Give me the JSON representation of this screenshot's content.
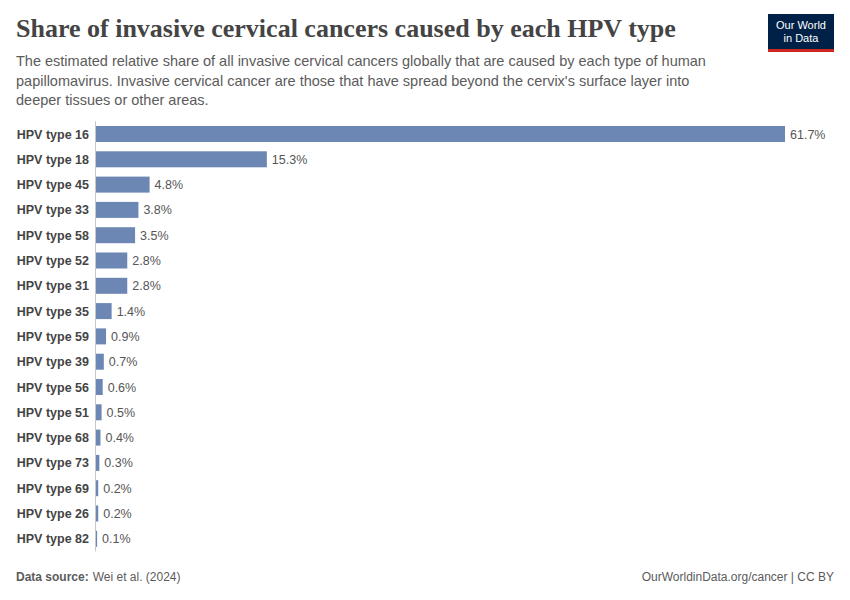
{
  "chart_data": {
    "type": "bar",
    "orientation": "horizontal",
    "title": "Share of invasive cervical cancers caused by each HPV type",
    "subtitle": "The estimated relative share of all invasive cervical cancers globally that are caused by each type of human papillomavirus. Invasive cervical cancer are those that have spread beyond the cervix's surface layer into deeper tissues or other areas.",
    "categories": [
      "HPV type 16",
      "HPV type 18",
      "HPV type 45",
      "HPV type 33",
      "HPV type 58",
      "HPV type 52",
      "HPV type 31",
      "HPV type 35",
      "HPV type 59",
      "HPV type 39",
      "HPV type 56",
      "HPV type 51",
      "HPV type 68",
      "HPV type 73",
      "HPV type 69",
      "HPV type 26",
      "HPV type 82"
    ],
    "values": [
      61.7,
      15.3,
      4.8,
      3.8,
      3.5,
      2.8,
      2.8,
      1.4,
      0.9,
      0.7,
      0.6,
      0.5,
      0.4,
      0.3,
      0.2,
      0.2,
      0.1
    ],
    "value_labels": [
      "61.7%",
      "15.3%",
      "4.8%",
      "3.8%",
      "3.5%",
      "2.8%",
      "2.8%",
      "1.4%",
      "0.9%",
      "0.7%",
      "0.6%",
      "0.5%",
      "0.4%",
      "0.3%",
      "0.2%",
      "0.2%",
      "0.1%"
    ],
    "data_labels": true,
    "color": "#6d87b5",
    "xlim": [
      0,
      61.7
    ],
    "tick_labels": "y",
    "grid": false,
    "source_label": "Data source:",
    "source": "Wei et al. (2024)",
    "footer": "OurWorldinData.org/cancer | CC BY",
    "logo": [
      "Our World",
      "in Data"
    ]
  }
}
